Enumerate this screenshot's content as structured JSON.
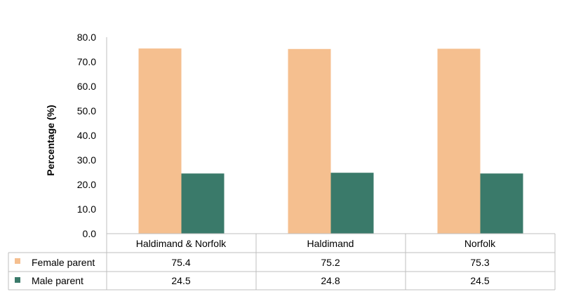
{
  "chart_data": {
    "type": "bar",
    "categories": [
      "Haldimand & Norfolk",
      "Haldimand",
      "Norfolk"
    ],
    "series": [
      {
        "name": "Female parent",
        "values": [
          75.4,
          75.2,
          75.3
        ],
        "color": "#F5BF8F"
      },
      {
        "name": "Male parent",
        "values": [
          24.5,
          24.8,
          24.5
        ],
        "color": "#3A7A6A"
      }
    ],
    "table_values": [
      [
        "75.4",
        "75.2",
        "75.3"
      ],
      [
        "24.5",
        "24.8",
        "24.5"
      ]
    ],
    "ylabel": "Percentage (%)",
    "ylim": [
      0,
      80
    ],
    "yticks": [
      "0.0",
      "10.0",
      "20.0",
      "30.0",
      "40.0",
      "50.0",
      "60.0",
      "70.0",
      "80.0"
    ],
    "grid": false,
    "legend": "data-table-below"
  }
}
